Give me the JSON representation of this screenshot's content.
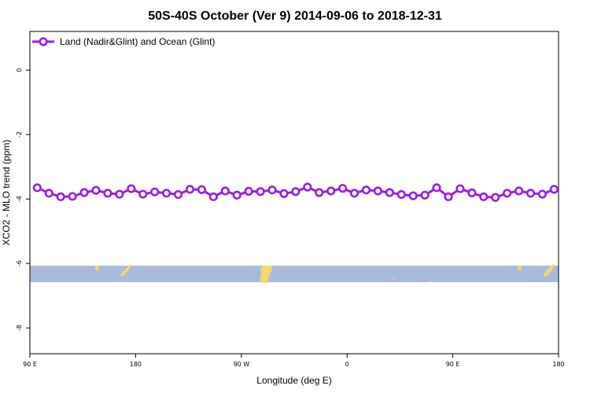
{
  "chart_data": {
    "type": "line",
    "title": "50S-40S October (Ver 9)   2014-09-06 to 2018-12-31",
    "xlabel": "Longitude (deg E)",
    "ylabel": "XCO2 - MLO trend (ppm)",
    "xlim": [
      90,
      450
    ],
    "ylim": [
      -8.8,
      1.2
    ],
    "x_ticks": [
      {
        "value": 90,
        "label": "90 E"
      },
      {
        "value": 162,
        "label": "180"
      },
      {
        "value": 234,
        "label": "90 W"
      },
      {
        "value": 306,
        "label": "0"
      },
      {
        "value": 378,
        "label": "90 E"
      },
      {
        "value": 450,
        "label": "180"
      }
    ],
    "y_ticks": [
      {
        "value": 0,
        "label": "0"
      },
      {
        "value": -2,
        "label": "-2"
      },
      {
        "value": -4,
        "label": "-4"
      },
      {
        "value": -6,
        "label": "-6"
      },
      {
        "value": -8,
        "label": "-8"
      }
    ],
    "grid": false,
    "legend_position": "top-left",
    "series": [
      {
        "name": "Land (Nadir&Glint) and Ocean (Glint)",
        "color": "#9a1ee0",
        "marker": "open-circle",
        "x": [
          95,
          103,
          111,
          119,
          127,
          135,
          143,
          151,
          159,
          167,
          175,
          183,
          191,
          199,
          207,
          215,
          223,
          231,
          239,
          247,
          255,
          263,
          271,
          279,
          287,
          295,
          303,
          311,
          319,
          327,
          335,
          343,
          351,
          359,
          367,
          375,
          383,
          391,
          399,
          407,
          415,
          423,
          431,
          439,
          447
        ],
        "y": [
          -3.65,
          -3.82,
          -3.93,
          -3.92,
          -3.8,
          -3.73,
          -3.82,
          -3.85,
          -3.68,
          -3.85,
          -3.78,
          -3.82,
          -3.86,
          -3.7,
          -3.71,
          -3.93,
          -3.75,
          -3.88,
          -3.76,
          -3.77,
          -3.72,
          -3.83,
          -3.77,
          -3.63,
          -3.8,
          -3.75,
          -3.67,
          -3.82,
          -3.72,
          -3.75,
          -3.8,
          -3.86,
          -3.9,
          -3.88,
          -3.65,
          -3.93,
          -3.68,
          -3.81,
          -3.93,
          -3.95,
          -3.82,
          -3.75,
          -3.82,
          -3.85,
          -3.7
        ]
      }
    ],
    "map_band": {
      "lat_range": [
        "50S",
        "40S"
      ],
      "ocean_color": "#a8bbdc",
      "land_color": "#f5d76e",
      "y_range": [
        -6.58,
        -6.07
      ]
    }
  }
}
